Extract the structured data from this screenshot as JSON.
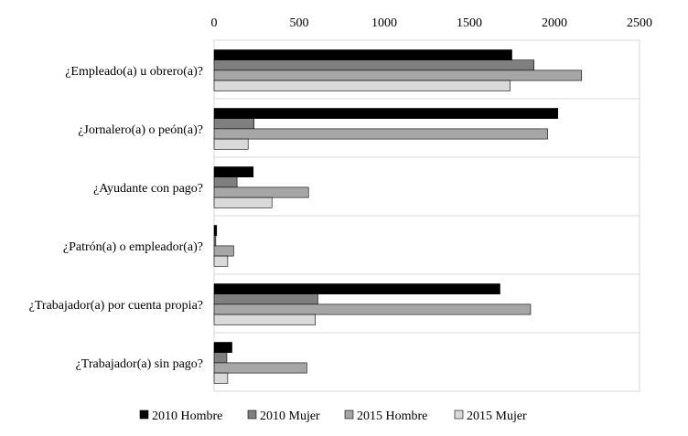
{
  "chart_data": {
    "type": "bar",
    "orientation": "horizontal",
    "title": "",
    "xlabel": "",
    "ylabel": "",
    "xlim": [
      0,
      2500
    ],
    "xticks": [
      "0",
      "500",
      "1000",
      "1500",
      "2000",
      "2500"
    ],
    "x_axis_position": "top",
    "grid": "horizontal separators between categories",
    "legend_position": "bottom",
    "categories": [
      "¿Empleado(a) u obrero(a)?",
      "¿Jornalero(a) o peón(a)?",
      "¿Ayudante con pago?",
      "¿Patrón(a) o empleador(a)?",
      "¿Trabajador(a) por cuenta propia?",
      "¿Trabajador(a) sin pago?"
    ],
    "series": [
      {
        "name": "2010 Hombre",
        "color": "#000000",
        "values": [
          1750,
          2020,
          230,
          15,
          1680,
          105
        ]
      },
      {
        "name": "2010 Mujer",
        "color": "#7f7f7f",
        "values": [
          1880,
          235,
          135,
          10,
          610,
          75
        ]
      },
      {
        "name": "2015 Hombre",
        "color": "#a6a6a6",
        "values": [
          2160,
          1960,
          555,
          115,
          1860,
          545
        ]
      },
      {
        "name": "2015 Mujer",
        "color": "#d9d9d9",
        "values": [
          1740,
          200,
          340,
          80,
          595,
          80
        ]
      }
    ]
  }
}
